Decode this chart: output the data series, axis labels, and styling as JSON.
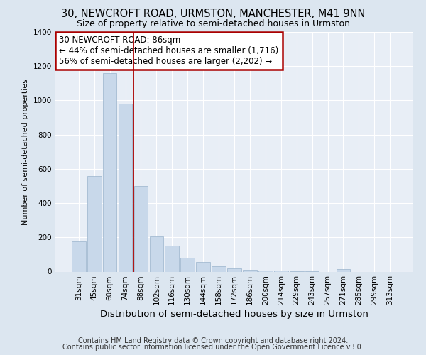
{
  "title": "30, NEWCROFT ROAD, URMSTON, MANCHESTER, M41 9NN",
  "subtitle": "Size of property relative to semi-detached houses in Urmston",
  "xlabel": "Distribution of semi-detached houses by size in Urmston",
  "ylabel": "Number of semi-detached properties",
  "categories": [
    "31sqm",
    "45sqm",
    "60sqm",
    "74sqm",
    "88sqm",
    "102sqm",
    "116sqm",
    "130sqm",
    "144sqm",
    "158sqm",
    "172sqm",
    "186sqm",
    "200sqm",
    "214sqm",
    "229sqm",
    "243sqm",
    "257sqm",
    "271sqm",
    "285sqm",
    "299sqm",
    "313sqm"
  ],
  "values": [
    175,
    560,
    1160,
    980,
    500,
    205,
    150,
    80,
    55,
    30,
    18,
    12,
    8,
    5,
    3,
    1,
    0,
    15,
    0,
    0,
    0
  ],
  "bar_color": "#c8d8ea",
  "bar_edge_color": "#9ab4cc",
  "property_line_color": "#aa0000",
  "property_line_bin": 3,
  "annotation_text": "30 NEWCROFT ROAD: 86sqm\n← 44% of semi-detached houses are smaller (1,716)\n56% of semi-detached houses are larger (2,202) →",
  "annotation_box_facecolor": "#ffffff",
  "annotation_box_edgecolor": "#aa0000",
  "footer_line1": "Contains HM Land Registry data © Crown copyright and database right 2024.",
  "footer_line2": "Contains public sector information licensed under the Open Government Licence v3.0.",
  "fig_facecolor": "#dce6f0",
  "ax_facecolor": "#e8eef6",
  "ylim": [
    0,
    1400
  ],
  "grid_color": "#ffffff",
  "title_fontsize": 10.5,
  "subtitle_fontsize": 9.0,
  "xlabel_fontsize": 9.5,
  "ylabel_fontsize": 8.0,
  "tick_fontsize": 7.5,
  "footer_fontsize": 7.0,
  "annotation_fontsize": 8.5
}
